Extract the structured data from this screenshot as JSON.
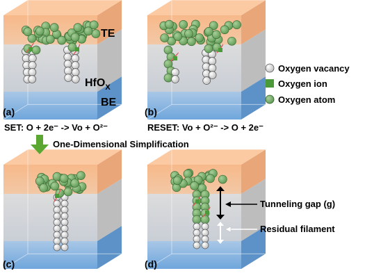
{
  "panels": {
    "a": {
      "label": "(a)"
    },
    "b": {
      "label": "(b)"
    },
    "c": {
      "label": "(c)"
    },
    "d": {
      "label": "(d)"
    }
  },
  "layers": {
    "top_electrode": "TE",
    "oxide": "HfO",
    "oxide_subscript": "X",
    "bottom_electrode": "BE"
  },
  "legend": {
    "items": [
      {
        "name": "oxygen-vacancy",
        "label": "Oxygen vacancy",
        "color": "#e6e6e6"
      },
      {
        "name": "oxygen-ion",
        "label": "Oxygen ion",
        "color": "#4a9a3a"
      },
      {
        "name": "oxygen-atom",
        "label": "Oxygen atom",
        "color": "#6fa86a"
      }
    ]
  },
  "equations": {
    "set": "SET: O + 2e⁻ -> Vo + O²⁻",
    "reset": "RESET: Vo + O²⁻ -> O + 2e⁻"
  },
  "arrow_label": "One-Dimensional Simplification",
  "annotations": {
    "tunneling_gap": "Tunneling gap (g)",
    "residual_filament": "Residual filament"
  },
  "colors": {
    "top_electrode": "#f7b98a",
    "oxide": "#d4d4d4",
    "bottom_electrode": "#7fb0de",
    "arrow_green": "#5aa832",
    "ion_link": "#e05a5a"
  }
}
